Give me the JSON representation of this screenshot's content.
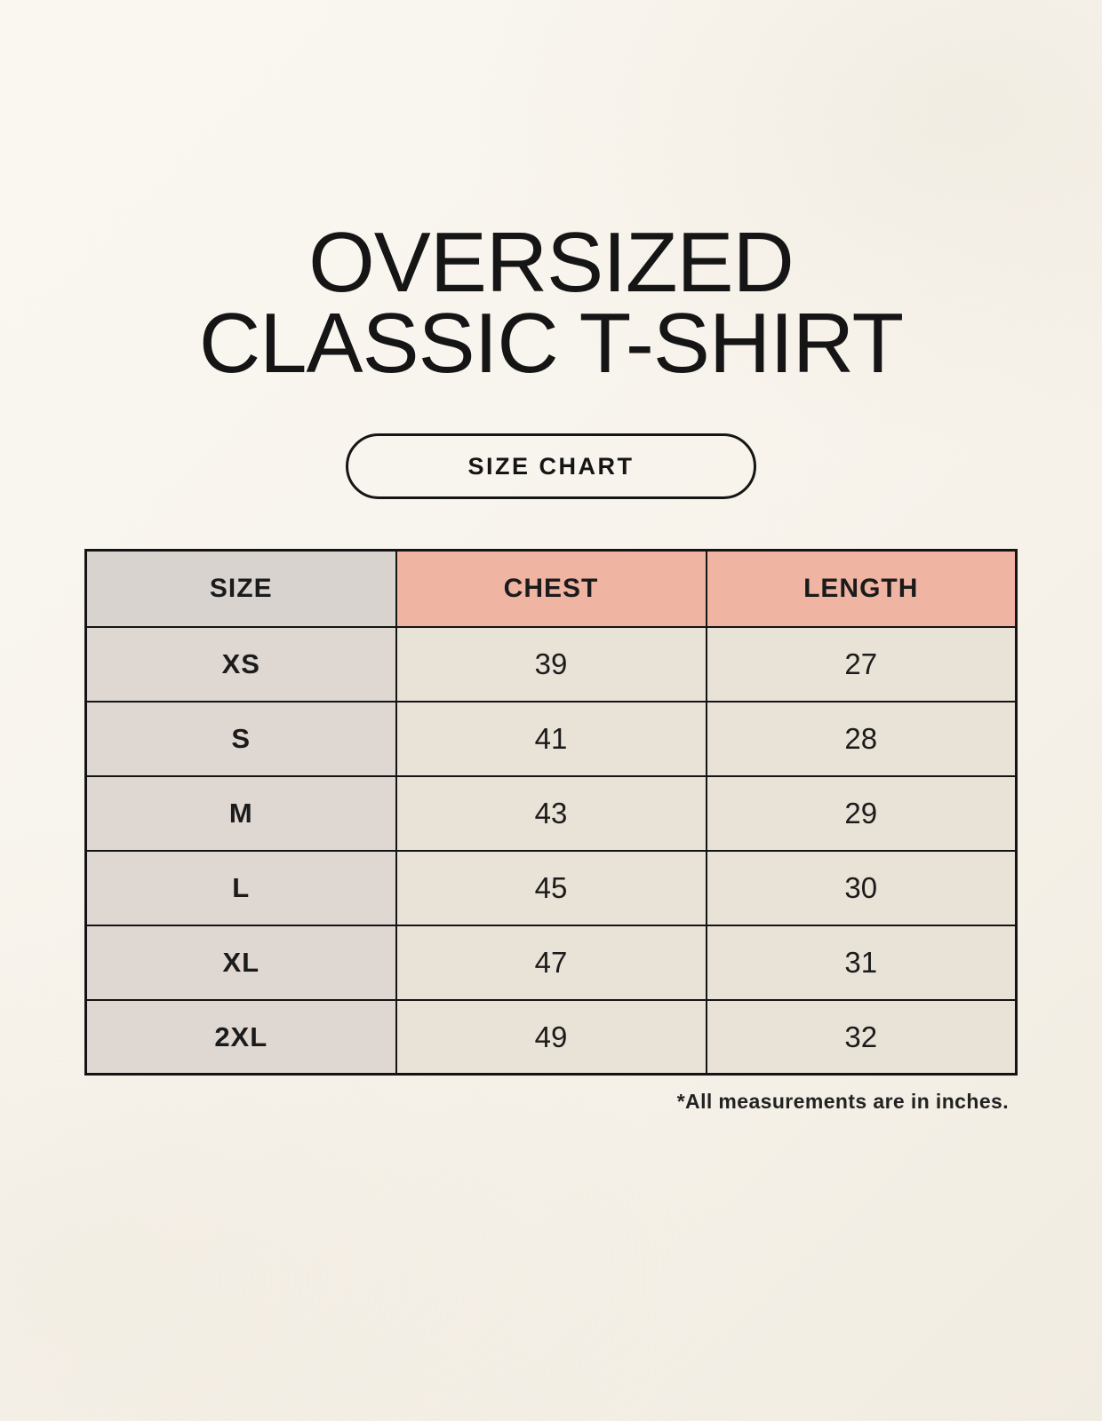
{
  "page": {
    "title_line1": "OVERSIZED",
    "title_line2": "CLASSIC T-SHIRT",
    "button_label": "SIZE CHART",
    "footnote": "*All measurements are in inches."
  },
  "colors": {
    "background": "#f8f4ed",
    "header_size_bg": "#d9d3cf",
    "header_accent_bg": "#f0b4a3",
    "body_size_bg": "#ded7d2",
    "body_value_bg": "#e9e2d7",
    "border": "#141414",
    "text": "#1b1b1b"
  },
  "chart_data": {
    "type": "table",
    "title": "OVERSIZED CLASSIC T-SHIRT — SIZE CHART",
    "columns": [
      "SIZE",
      "CHEST",
      "LENGTH"
    ],
    "rows": [
      [
        "XS",
        "39",
        "27"
      ],
      [
        "S",
        "41",
        "28"
      ],
      [
        "M",
        "43",
        "29"
      ],
      [
        "L",
        "45",
        "30"
      ],
      [
        "XL",
        "47",
        "31"
      ],
      [
        "2XL",
        "49",
        "32"
      ]
    ],
    "unit_note": "*All measurements are in inches."
  }
}
